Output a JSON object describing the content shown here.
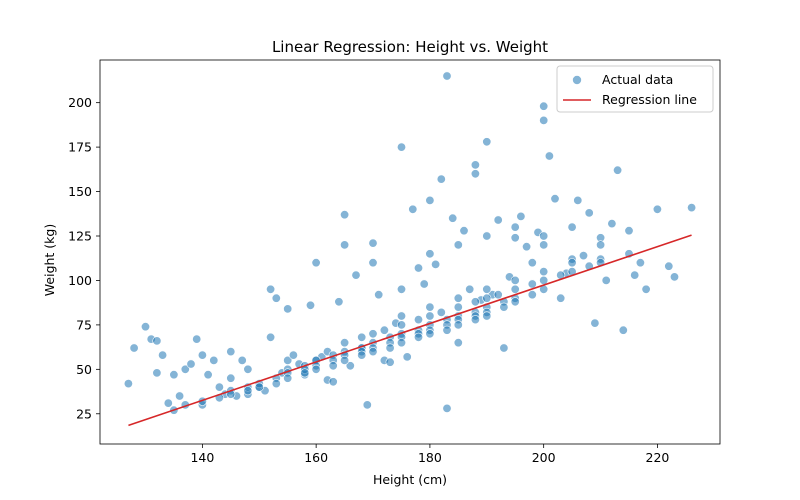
{
  "chart_data": {
    "type": "scatter",
    "title": "Linear Regression: Height vs. Weight",
    "xlabel": "Height (cm)",
    "ylabel": "Weight (kg)",
    "xlim": [
      122,
      231
    ],
    "ylim": [
      8,
      224
    ],
    "xticks": [
      140,
      160,
      180,
      200,
      220
    ],
    "yticks": [
      25,
      50,
      75,
      100,
      125,
      150,
      175,
      200
    ],
    "grid": false,
    "legend_position": "top-right",
    "series": [
      {
        "name": "Actual data",
        "kind": "scatter",
        "color": "#1f77b4",
        "x": [
          127,
          128,
          130,
          131,
          132,
          132,
          133,
          134,
          135,
          135,
          136,
          137,
          137,
          138,
          139,
          140,
          140,
          141,
          142,
          143,
          144,
          145,
          145,
          146,
          147,
          148,
          148,
          150,
          151,
          152,
          152,
          153,
          154,
          155,
          155,
          156,
          157,
          158,
          159,
          160,
          161,
          162,
          163,
          164,
          165,
          166,
          167,
          168,
          169,
          170,
          171,
          172,
          173,
          174,
          175,
          176,
          177,
          178,
          179,
          180,
          181,
          182,
          183,
          184,
          185,
          186,
          187,
          188,
          189,
          190,
          191,
          192,
          193,
          194,
          195,
          196,
          197,
          198,
          199,
          200,
          201,
          202,
          203,
          204,
          205,
          206,
          207,
          208,
          209,
          210,
          211,
          212,
          213,
          214,
          215,
          216,
          217,
          218,
          220,
          222,
          223,
          226,
          183,
          200,
          200,
          188,
          165,
          170,
          175,
          180,
          185,
          190,
          195,
          200,
          205,
          210,
          175,
          180,
          185,
          190,
          195,
          200,
          205,
          210,
          215,
          160,
          162,
          165,
          168,
          170,
          172,
          175,
          178,
          180,
          182,
          185,
          188,
          190,
          192,
          195,
          198,
          200,
          203,
          205,
          208,
          210,
          155,
          158,
          160,
          163,
          165,
          168,
          170,
          173,
          175,
          178,
          180,
          183,
          185,
          188,
          190,
          193,
          195,
          198,
          200,
          145,
          148,
          150,
          153,
          155,
          158,
          160,
          163,
          165,
          168,
          170,
          173,
          175,
          178,
          180,
          183,
          185,
          188,
          190,
          193,
          195,
          140,
          143,
          145,
          148,
          150,
          153,
          155,
          158,
          160,
          163,
          165,
          168,
          170,
          173,
          175,
          178,
          180,
          183,
          185,
          188,
          190
        ],
        "y": [
          42,
          62,
          74,
          67,
          66,
          48,
          58,
          31,
          27,
          47,
          35,
          50,
          30,
          53,
          67,
          30,
          58,
          47,
          55,
          40,
          36,
          45,
          60,
          35,
          55,
          36,
          50,
          40,
          38,
          95,
          68,
          90,
          48,
          84,
          55,
          58,
          53,
          47,
          86,
          110,
          57,
          44,
          43,
          88,
          137,
          52,
          103,
          62,
          30,
          121,
          92,
          55,
          54,
          76,
          175,
          57,
          140,
          107,
          98,
          145,
          109,
          157,
          215,
          135,
          65,
          128,
          95,
          160,
          89,
          178,
          92,
          134,
          62,
          102,
          124,
          136,
          119,
          110,
          127,
          198,
          170,
          146,
          90,
          104,
          112,
          145,
          114,
          138,
          76,
          124,
          100,
          132,
          162,
          72,
          128,
          103,
          110,
          95,
          140,
          108,
          102,
          141,
          28,
          190,
          120,
          165,
          120,
          110,
          95,
          115,
          120,
          125,
          130,
          125,
          130,
          120,
          80,
          85,
          90,
          95,
          100,
          105,
          110,
          112,
          115,
          55,
          60,
          65,
          68,
          70,
          72,
          75,
          78,
          80,
          82,
          85,
          88,
          90,
          92,
          95,
          98,
          100,
          103,
          105,
          108,
          110,
          50,
          52,
          55,
          58,
          60,
          62,
          65,
          68,
          70,
          72,
          75,
          78,
          80,
          82,
          85,
          88,
          90,
          92,
          95,
          38,
          40,
          42,
          45,
          48,
          50,
          52,
          55,
          58,
          60,
          62,
          65,
          68,
          70,
          72,
          75,
          78,
          80,
          82,
          85,
          88,
          32,
          34,
          36,
          38,
          40,
          42,
          45,
          48,
          50,
          52,
          55,
          58,
          60,
          62,
          65,
          68,
          70,
          72,
          75,
          78,
          80
        ]
      },
      {
        "name": "Regression line",
        "kind": "line",
        "color": "#d62728",
        "x": [
          127,
          226
        ],
        "y": [
          18.5,
          125.5
        ]
      }
    ]
  }
}
